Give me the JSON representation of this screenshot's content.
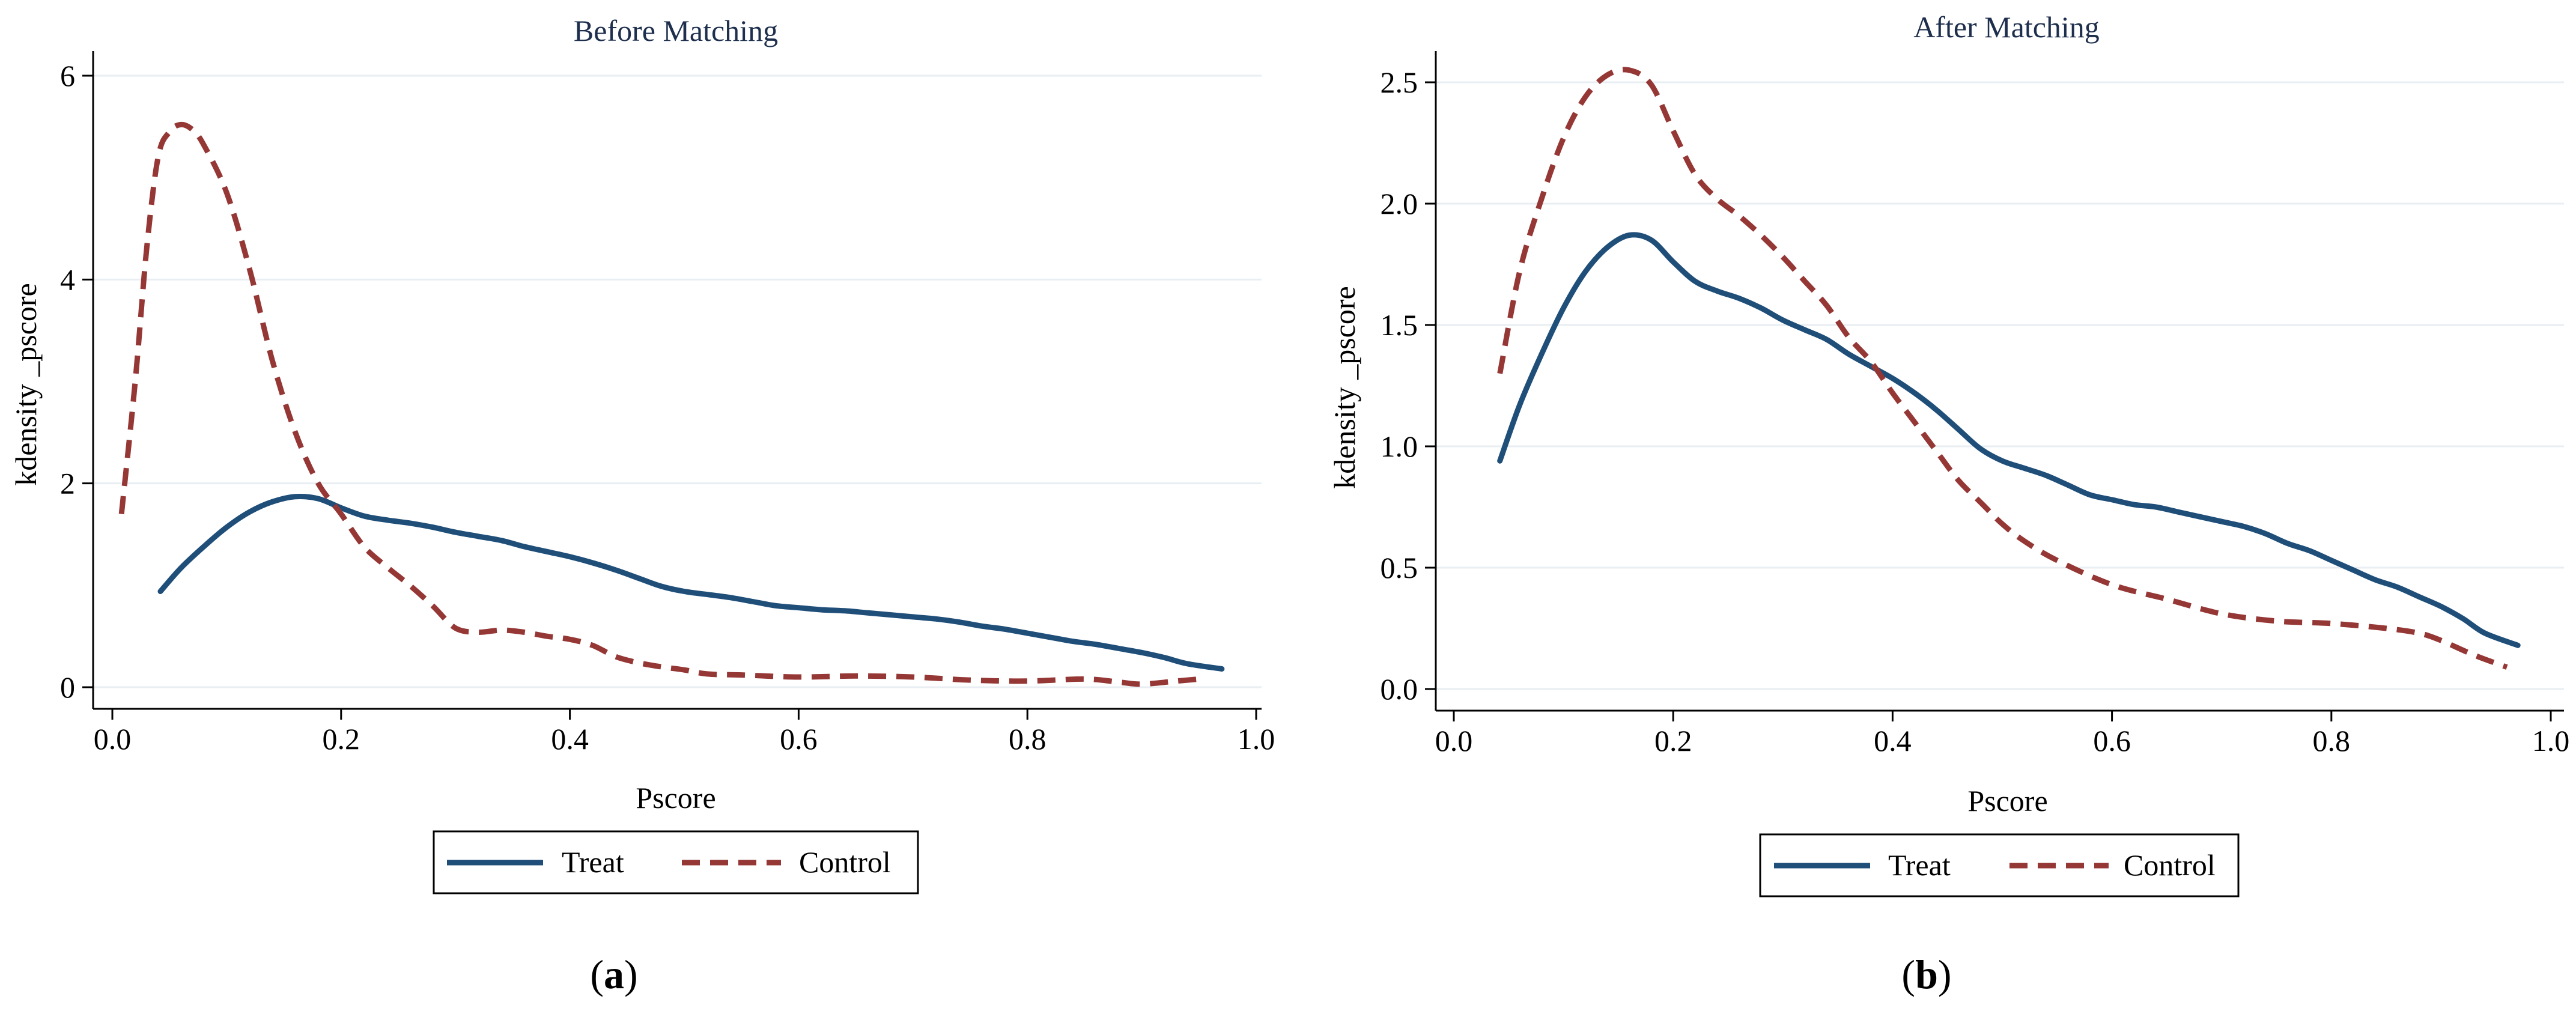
{
  "chart_data": [
    {
      "type": "line",
      "title": "Before Matching",
      "xlabel": "Pscore",
      "ylabel": "kdensity _pscore",
      "xlim": [
        0,
        1
      ],
      "ylim": [
        0,
        6
      ],
      "xticks": [
        0,
        0.2,
        0.4,
        0.6,
        0.8,
        1
      ],
      "xtick_labels": [
        "0.0",
        "0.2",
        "0.4",
        "0.6",
        "0.8",
        "1.0"
      ],
      "yticks": [
        0,
        2,
        4,
        6
      ],
      "ytick_labels": [
        "0",
        "2",
        "4",
        "6"
      ],
      "grid": true,
      "legend_position": "bottom",
      "panel_label": "a",
      "series": [
        {
          "name": "Treat",
          "color": "#1f4e79",
          "style": "solid",
          "x": [
            0.042,
            0.06,
            0.08,
            0.1,
            0.12,
            0.14,
            0.16,
            0.18,
            0.2,
            0.22,
            0.24,
            0.26,
            0.28,
            0.3,
            0.32,
            0.34,
            0.36,
            0.38,
            0.4,
            0.42,
            0.44,
            0.46,
            0.48,
            0.5,
            0.52,
            0.54,
            0.56,
            0.58,
            0.6,
            0.62,
            0.64,
            0.66,
            0.68,
            0.7,
            0.72,
            0.74,
            0.76,
            0.78,
            0.8,
            0.82,
            0.84,
            0.86,
            0.88,
            0.9,
            0.92,
            0.94,
            0.97
          ],
          "y": [
            0.94,
            1.17,
            1.38,
            1.57,
            1.72,
            1.82,
            1.87,
            1.85,
            1.76,
            1.68,
            1.64,
            1.61,
            1.57,
            1.52,
            1.48,
            1.44,
            1.38,
            1.33,
            1.28,
            1.22,
            1.15,
            1.07,
            0.99,
            0.94,
            0.91,
            0.88,
            0.84,
            0.8,
            0.78,
            0.76,
            0.75,
            0.73,
            0.71,
            0.69,
            0.67,
            0.64,
            0.6,
            0.57,
            0.53,
            0.49,
            0.45,
            0.42,
            0.38,
            0.34,
            0.29,
            0.23,
            0.18
          ]
        },
        {
          "name": "Control",
          "color": "#953735",
          "style": "dashed",
          "x": [
            0.008,
            0.02,
            0.03,
            0.04,
            0.05,
            0.06,
            0.07,
            0.08,
            0.1,
            0.12,
            0.14,
            0.16,
            0.18,
            0.2,
            0.22,
            0.24,
            0.26,
            0.28,
            0.3,
            0.32,
            0.34,
            0.36,
            0.38,
            0.4,
            0.42,
            0.44,
            0.46,
            0.48,
            0.5,
            0.52,
            0.55,
            0.6,
            0.65,
            0.7,
            0.75,
            0.8,
            0.85,
            0.88,
            0.9,
            0.93,
            0.95
          ],
          "y": [
            1.7,
            3.0,
            4.3,
            5.2,
            5.45,
            5.52,
            5.47,
            5.32,
            4.85,
            4.1,
            3.2,
            2.5,
            2.0,
            1.7,
            1.38,
            1.18,
            1.0,
            0.8,
            0.58,
            0.54,
            0.56,
            0.54,
            0.5,
            0.47,
            0.41,
            0.3,
            0.24,
            0.2,
            0.17,
            0.13,
            0.12,
            0.1,
            0.11,
            0.1,
            0.07,
            0.06,
            0.08,
            0.05,
            0.03,
            0.06,
            0.08
          ]
        }
      ]
    },
    {
      "type": "line",
      "title": "After Matching",
      "xlabel": "Pscore",
      "ylabel": "kdensity _pscore",
      "xlim": [
        0,
        1
      ],
      "ylim": [
        0,
        2.5
      ],
      "xticks": [
        0,
        0.2,
        0.4,
        0.6,
        0.8,
        1
      ],
      "xtick_labels": [
        "0.0",
        "0.2",
        "0.4",
        "0.6",
        "0.8",
        "1.0"
      ],
      "yticks": [
        0,
        0.5,
        1,
        1.5,
        2,
        2.5
      ],
      "ytick_labels": [
        "0.0",
        "0.5",
        "1.0",
        "1.5",
        "2.0",
        "2.5"
      ],
      "grid": true,
      "legend_position": "bottom",
      "panel_label": "b",
      "series": [
        {
          "name": "Treat",
          "color": "#1f4e79",
          "style": "solid",
          "x": [
            0.042,
            0.06,
            0.08,
            0.1,
            0.12,
            0.14,
            0.16,
            0.18,
            0.2,
            0.22,
            0.24,
            0.26,
            0.28,
            0.3,
            0.32,
            0.34,
            0.36,
            0.38,
            0.4,
            0.42,
            0.44,
            0.46,
            0.48,
            0.5,
            0.52,
            0.54,
            0.56,
            0.58,
            0.6,
            0.62,
            0.64,
            0.66,
            0.68,
            0.7,
            0.72,
            0.74,
            0.76,
            0.78,
            0.8,
            0.82,
            0.84,
            0.86,
            0.88,
            0.9,
            0.92,
            0.94,
            0.97
          ],
          "y": [
            0.94,
            1.17,
            1.38,
            1.57,
            1.72,
            1.82,
            1.87,
            1.85,
            1.76,
            1.68,
            1.64,
            1.61,
            1.57,
            1.52,
            1.48,
            1.44,
            1.38,
            1.33,
            1.28,
            1.22,
            1.15,
            1.07,
            0.99,
            0.94,
            0.91,
            0.88,
            0.84,
            0.8,
            0.78,
            0.76,
            0.75,
            0.73,
            0.71,
            0.69,
            0.67,
            0.64,
            0.6,
            0.57,
            0.53,
            0.49,
            0.45,
            0.42,
            0.38,
            0.34,
            0.29,
            0.23,
            0.18
          ]
        },
        {
          "name": "Control",
          "color": "#953735",
          "style": "dashed",
          "x": [
            0.042,
            0.06,
            0.08,
            0.1,
            0.12,
            0.14,
            0.16,
            0.18,
            0.2,
            0.22,
            0.24,
            0.26,
            0.28,
            0.3,
            0.32,
            0.34,
            0.36,
            0.38,
            0.4,
            0.42,
            0.44,
            0.46,
            0.48,
            0.5,
            0.52,
            0.55,
            0.6,
            0.65,
            0.7,
            0.75,
            0.8,
            0.85,
            0.88,
            0.9,
            0.93,
            0.96
          ],
          "y": [
            1.3,
            1.72,
            2.02,
            2.27,
            2.44,
            2.53,
            2.55,
            2.49,
            2.3,
            2.12,
            2.02,
            1.95,
            1.87,
            1.78,
            1.68,
            1.58,
            1.45,
            1.35,
            1.22,
            1.1,
            0.98,
            0.86,
            0.77,
            0.68,
            0.61,
            0.53,
            0.43,
            0.37,
            0.31,
            0.28,
            0.27,
            0.25,
            0.23,
            0.2,
            0.14,
            0.09
          ]
        }
      ]
    }
  ]
}
